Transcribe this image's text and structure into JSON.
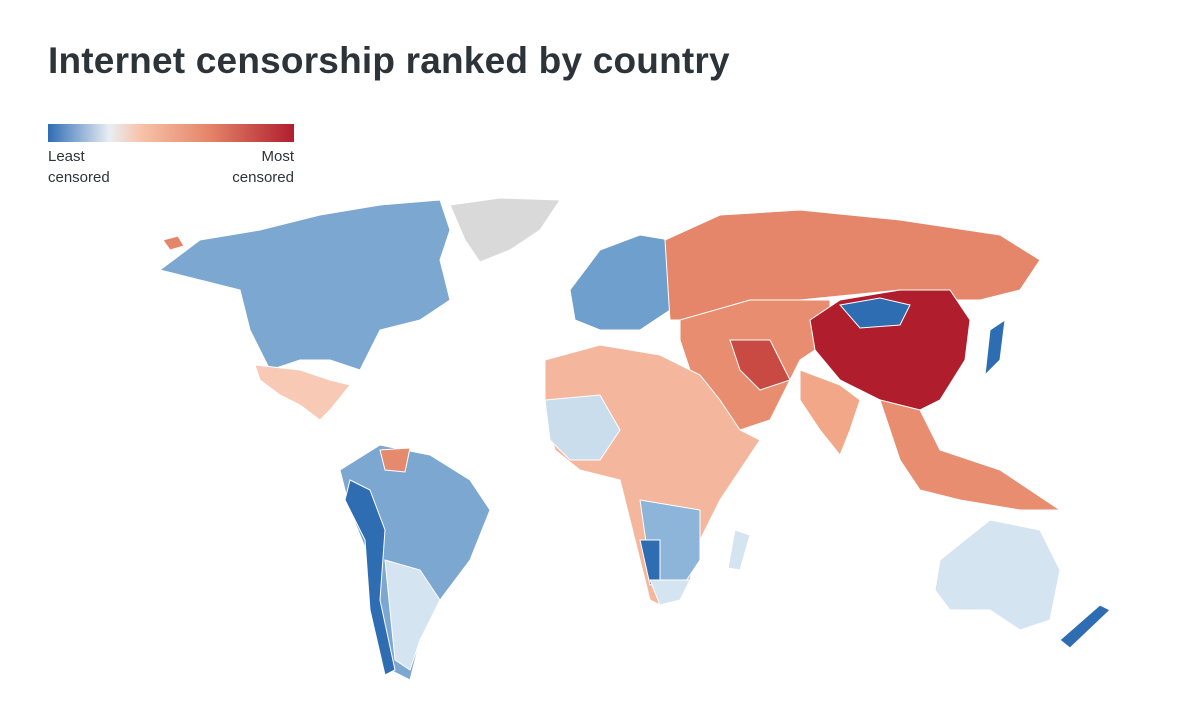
{
  "header": {
    "title": "Internet censorship ranked by country"
  },
  "legend": {
    "min_label": "Least censored",
    "max_label": "Most censored"
  }
}
